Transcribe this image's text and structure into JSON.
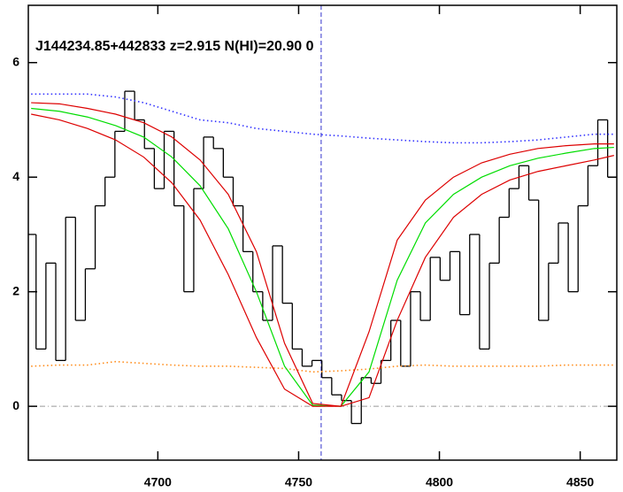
{
  "chart_data": {
    "type": "line",
    "title": "J144234.85+442833 z=2.915 N(HI)=20.90 0",
    "xlim": [
      4654,
      4863
    ],
    "ylim": [
      -0.94,
      7.0
    ],
    "xticks": [
      4700,
      4750,
      4800,
      4850
    ],
    "yticks": [
      0,
      2,
      4,
      6
    ],
    "hline": 0,
    "vline": 4758,
    "series": [
      {
        "style": "step",
        "color": "#000000",
        "x": [
          4655,
          4658.5,
          4662,
          4665.5,
          4669,
          4672.5,
          4676,
          4679.5,
          4683,
          4686.5,
          4690,
          4693.5,
          4697,
          4700.5,
          4704,
          4707.5,
          4711,
          4714.5,
          4718,
          4721.5,
          4725,
          4728.5,
          4732,
          4735.5,
          4739,
          4742.5,
          4746,
          4749.5,
          4753,
          4756.5,
          4760,
          4763.5,
          4767,
          4770.5,
          4774,
          4777.5,
          4781,
          4784.5,
          4788,
          4791.5,
          4795,
          4798.5,
          4802,
          4805.5,
          4809,
          4812.5,
          4816,
          4819.5,
          4823,
          4826.5,
          4830,
          4833.5,
          4837,
          4840.5,
          4844,
          4847.5,
          4851,
          4854.5,
          4858,
          4861.5
        ],
        "values": [
          3.0,
          1.0,
          2.5,
          0.8,
          3.3,
          1.5,
          2.4,
          3.5,
          4.0,
          4.8,
          5.5,
          5.0,
          4.5,
          3.8,
          4.8,
          3.5,
          2.0,
          3.8,
          4.7,
          4.5,
          4.0,
          3.5,
          2.7,
          2.0,
          1.5,
          2.8,
          1.8,
          1.0,
          0.7,
          0.8,
          0.5,
          0.2,
          0.1,
          -0.3,
          0.5,
          0.4,
          0.8,
          1.5,
          0.7,
          2.0,
          1.5,
          2.6,
          2.2,
          2.7,
          1.6,
          3.0,
          1.0,
          2.5,
          3.3,
          3.8,
          4.2,
          3.6,
          1.5,
          2.5,
          3.2,
          2.0,
          3.5,
          4.2,
          5.0,
          4.0
        ]
      },
      {
        "style": "dotted",
        "color": "#ff8c1a",
        "x": [
          4655,
          4665,
          4675,
          4685,
          4695,
          4705,
          4715,
          4725,
          4735,
          4745,
          4755,
          4765,
          4775,
          4785,
          4795,
          4805,
          4815,
          4825,
          4835,
          4845,
          4855,
          4862
        ],
        "values": [
          0.7,
          0.72,
          0.72,
          0.78,
          0.75,
          0.72,
          0.7,
          0.7,
          0.68,
          0.66,
          0.6,
          0.62,
          0.65,
          0.7,
          0.72,
          0.7,
          0.7,
          0.7,
          0.7,
          0.72,
          0.72,
          0.72
        ]
      },
      {
        "style": "dotted",
        "color": "#3333ff",
        "x": [
          4655,
          4665,
          4675,
          4685,
          4695,
          4705,
          4715,
          4725,
          4735,
          4745,
          4755,
          4765,
          4775,
          4785,
          4795,
          4805,
          4815,
          4825,
          4835,
          4845,
          4855,
          4862
        ],
        "values": [
          5.45,
          5.45,
          5.45,
          5.4,
          5.3,
          5.15,
          5.0,
          4.95,
          4.85,
          4.8,
          4.75,
          4.72,
          4.68,
          4.65,
          4.62,
          4.6,
          4.6,
          4.62,
          4.65,
          4.7,
          4.75,
          4.75
        ]
      },
      {
        "style": "solid",
        "color": "#00dd00",
        "x": [
          4655,
          4665,
          4675,
          4685,
          4695,
          4705,
          4715,
          4725,
          4735,
          4745,
          4755,
          4765,
          4775,
          4785,
          4795,
          4805,
          4815,
          4825,
          4835,
          4845,
          4855,
          4862
        ],
        "values": [
          5.2,
          5.15,
          5.05,
          4.9,
          4.7,
          4.35,
          3.85,
          3.1,
          2.0,
          0.7,
          0.02,
          0.0,
          0.6,
          2.2,
          3.2,
          3.7,
          4.0,
          4.2,
          4.33,
          4.42,
          4.5,
          4.52
        ]
      },
      {
        "style": "solid",
        "color": "#dd0000",
        "x": [
          4655,
          4665,
          4675,
          4685,
          4695,
          4705,
          4715,
          4725,
          4735,
          4745,
          4755,
          4765,
          4775,
          4785,
          4795,
          4805,
          4815,
          4825,
          4835,
          4845,
          4855,
          4862
        ],
        "values": [
          5.3,
          5.28,
          5.2,
          5.1,
          4.95,
          4.7,
          4.3,
          3.7,
          2.7,
          1.1,
          0.05,
          0.0,
          1.3,
          2.9,
          3.6,
          4.0,
          4.25,
          4.4,
          4.5,
          4.55,
          4.58,
          4.58
        ]
      },
      {
        "style": "solid",
        "color": "#dd0000",
        "x": [
          4655,
          4665,
          4675,
          4685,
          4695,
          4705,
          4715,
          4725,
          4735,
          4745,
          4755,
          4765,
          4775,
          4785,
          4795,
          4805,
          4815,
          4825,
          4835,
          4845,
          4855,
          4862
        ],
        "values": [
          5.1,
          5.0,
          4.85,
          4.65,
          4.35,
          3.9,
          3.25,
          2.3,
          1.2,
          0.3,
          0.0,
          0.0,
          0.15,
          1.5,
          2.6,
          3.3,
          3.7,
          3.95,
          4.1,
          4.2,
          4.3,
          4.38
        ]
      }
    ]
  }
}
